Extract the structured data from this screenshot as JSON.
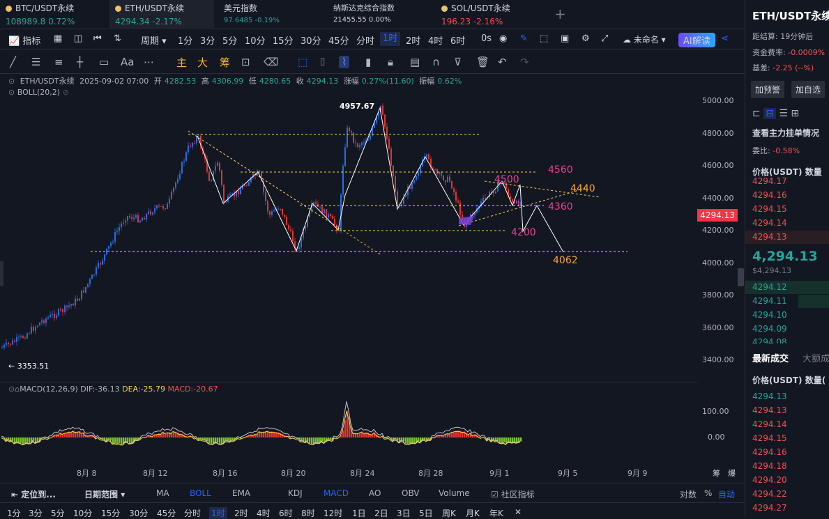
{
  "tabs": [
    {
      "name": "BTC/USDT永续",
      "price": "108989.8",
      "change": "0.72%"
    },
    {
      "name": "ETH/USDT永续",
      "price": "4294.34",
      "change": "-2.17%"
    },
    {
      "name": "美元指数",
      "price": "97.6485",
      "change": "-0.19%"
    },
    {
      "name": "纳斯达克综合指数",
      "price": "21455.55",
      "change": "0.00%"
    },
    {
      "name": "SOL/USDT永续",
      "price": "196.23",
      "change": "-2.16%"
    }
  ],
  "toolbar": {
    "indicators": "指标",
    "period": "周期",
    "intervals": [
      "1分",
      "3分",
      "5分",
      "10分",
      "15分",
      "45分",
      "分时",
      "1时",
      "2时",
      "4时",
      "6时"
    ],
    "interval_30": "30分",
    "sec": "0s",
    "layout_name": "未命名",
    "ai_label": "AI解读"
  },
  "drawing_tools": {
    "text_tool": "Aa",
    "main": "主",
    "big": "大",
    "chips": "筹"
  },
  "ohlc": {
    "symbol": "ETH/USDT永续",
    "time": "2025-09-02 07:00",
    "open_label": "开",
    "open": "4282.53",
    "high_label": "高",
    "high": "4306.99",
    "low_label": "低",
    "low": "4280.65",
    "close_label": "收",
    "close": "4294.13",
    "chg_label": "涨幅",
    "chg": "0.27%(11.60)",
    "amp_label": "振幅",
    "amp": "0.62%"
  },
  "boll_label": "BOLL(20,2)",
  "macd": {
    "label": "MACD(12,26,9)",
    "dif": "DIF:-36.13",
    "dea": "DEA:-25.79",
    "macd": "MACD:-20.67",
    "ticks": [
      "100.00",
      "0.00"
    ]
  },
  "price_axis": [
    "5000.00",
    "4800.00",
    "4600.00",
    "4400.00",
    "4200.00",
    "4000.00",
    "3800.00",
    "3600.00",
    "3400.00"
  ],
  "current_price": "4294.13",
  "annotations": {
    "high": "4957.67",
    "low": "3353.51",
    "l4560": "4560",
    "l4500": "4500",
    "l4440": "4440",
    "l4360": "4360",
    "l4200": "4200",
    "l4062": "4062"
  },
  "date_axis": [
    "8月 8",
    "8月 12",
    "8月 16",
    "8月 20",
    "8月 24",
    "8月 28",
    "9月 1",
    "9月 5",
    "9月 9"
  ],
  "axis_corner": [
    "筹",
    "爆"
  ],
  "bottom_bar": {
    "locate": "定位到...",
    "range": "日期范围",
    "inds": [
      "MA",
      "BOLL",
      "EMA",
      "KDJ",
      "MACD",
      "AO",
      "OBV",
      "Volume"
    ],
    "community": "社区指标",
    "log": "对数",
    "pct": "%",
    "auto": "自动"
  },
  "timeframes": [
    "1分",
    "3分",
    "5分",
    "10分",
    "15分",
    "30分",
    "45分",
    "分时",
    "1时",
    "2时",
    "4时",
    "6时",
    "8时",
    "12时",
    "1日",
    "2日",
    "3日",
    "5日",
    "周K",
    "月K",
    "年K"
  ],
  "side": {
    "title": "ETH/USDT永续",
    "settle_label": "距结算:",
    "settle": "19分钟后",
    "funding_label": "资金费率:",
    "funding": "-0.0009%",
    "basis_label": "基差:",
    "basis": "-2.25 (--%)",
    "alert_btn": "加预警",
    "add_btn": "加自选",
    "orderbook_title": "查看主力挂单情况",
    "ratio_label": "委比:",
    "ratio": "-0.58%",
    "col_price": "价格(USDT)",
    "col_qty": "数量",
    "asks": [
      "4294.17",
      "4294.16",
      "4294.15",
      "4294.14",
      "4294.13"
    ],
    "mid": "4,294.13",
    "mid_sub": "$4,294.13",
    "bids": [
      "4294.12",
      "4294.11",
      "4294.10",
      "4294.09",
      "4294.08"
    ],
    "trades_tab": "最新成交",
    "big_tab": "大额成",
    "trades_col_price": "价格(USDT)",
    "trades_col_qty": "数量(",
    "trades": [
      "4294.13",
      "4294.13",
      "4294.14",
      "4294.15",
      "4294.16",
      "4294.18",
      "4294.20",
      "4294.22",
      "4294.27"
    ]
  }
}
